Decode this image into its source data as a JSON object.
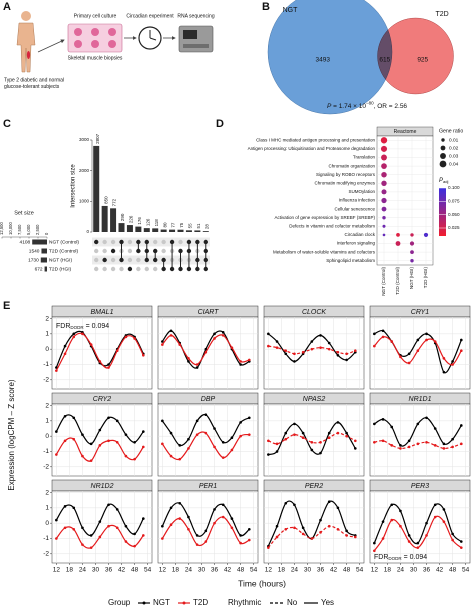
{
  "panel_a": {
    "label": "A",
    "steps": [
      "Primary cell culture",
      "Circadian experiment",
      "RNA sequencing"
    ],
    "biopsy": "Skeletal muscle biopsies",
    "caption": [
      "Type 2 diabetic and normal",
      "glucose-tolerant subjects"
    ]
  },
  "chart_data": [
    {
      "type": "venn",
      "panel": "B",
      "sets": [
        "NGT",
        "T2D"
      ],
      "colors": [
        "#6a9fd8",
        "#f07b7b"
      ],
      "values": [
        3493,
        615,
        925
      ],
      "annotation": [
        "P",
        " = 1.74 × 10",
        "−80",
        ", OR = 2.56"
      ]
    },
    {
      "type": "upset",
      "panel": "C",
      "ylabel": "Intersection size",
      "set_size_label": "Set size",
      "color": "#333333",
      "values": [
        2807,
        850,
        772,
        290,
        226,
        176,
        126,
        118,
        80,
        77,
        75,
        55,
        51,
        28
      ],
      "combinations": [
        [
          0
        ],
        [
          2
        ],
        [
          1
        ],
        [
          0,
          2
        ],
        [
          3
        ],
        [
          0,
          1
        ],
        [
          0,
          1,
          2
        ],
        [
          1,
          2
        ],
        [
          2,
          3
        ],
        [
          0,
          3
        ],
        [
          1,
          3
        ],
        [
          0,
          1,
          3
        ],
        [
          0,
          2,
          3
        ],
        [
          0,
          1,
          2,
          3
        ]
      ],
      "ylim": [
        0,
        3000
      ],
      "yticks": [
        0,
        1000,
        2000,
        3000
      ],
      "sets": [
        "NGT (Control)",
        "T2D (Control)",
        "NGT (HGI)",
        "T2D (HGI)"
      ],
      "set_sizes": [
        4108,
        1540,
        1730,
        672
      ],
      "set_size_xlim": [
        0,
        12500
      ],
      "set_size_xticks": [
        {
          "value": 12500,
          "label": "12,500"
        },
        {
          "value": 10000,
          "label": "10,000"
        },
        {
          "value": 7500,
          "label": "7,500"
        },
        {
          "value": 5000,
          "label": "5,000"
        },
        {
          "value": 2500,
          "label": "2,500"
        },
        0
      ]
    },
    {
      "type": "dotplot",
      "panel": "D",
      "header": "Reactome",
      "categories": [
        "Class I MHC mediated antigen processing and presentation",
        "Antigen processing: Ubiquitination and Proteasome degradation",
        "Translation",
        "Chromatin organization",
        "Signaling by ROBO receptors",
        "Chromatin modifying enzymes",
        "SUMOylation",
        "Influenza infection",
        "Cellular senescence",
        "Activation of gene expression by SREBF (SREBP)",
        "Defects in vitamin and cofactor metabolism",
        "Circadian clock",
        "Interferon signaling",
        "Metabolism of water-soluble vitamins and cofactors",
        "Sphingolipid metabolism"
      ],
      "x_categories": [
        "NGT (Control)",
        "T2D (Control)",
        "NGT (HGI)",
        "T2D (HGI)"
      ],
      "gene_ratio": [
        [
          0.035,
          null,
          null,
          null
        ],
        [
          0.032,
          null,
          null,
          null
        ],
        [
          0.03,
          null,
          null,
          null
        ],
        [
          0.028,
          null,
          null,
          null
        ],
        [
          0.026,
          null,
          null,
          null
        ],
        [
          0.025,
          null,
          null,
          null
        ],
        [
          0.022,
          null,
          null,
          null
        ],
        [
          0.024,
          null,
          null,
          null
        ],
        [
          0.02,
          null,
          null,
          null
        ],
        [
          0.01,
          null,
          null,
          null
        ],
        [
          0.008,
          null,
          null,
          null
        ],
        [
          0.006,
          0.012,
          0.01,
          0.015
        ],
        [
          null,
          0.02,
          0.015,
          null
        ],
        [
          null,
          null,
          0.012,
          null
        ],
        [
          null,
          null,
          0.01,
          null
        ]
      ],
      "p_adj": [
        [
          0.02,
          null,
          null,
          null
        ],
        [
          0.025,
          null,
          null,
          null
        ],
        [
          0.03,
          null,
          null,
          null
        ],
        [
          0.04,
          null,
          null,
          null
        ],
        [
          0.045,
          null,
          null,
          null
        ],
        [
          0.05,
          null,
          null,
          null
        ],
        [
          0.055,
          null,
          null,
          null
        ],
        [
          0.06,
          null,
          null,
          null
        ],
        [
          0.065,
          null,
          null,
          null
        ],
        [
          0.07,
          null,
          null,
          null
        ],
        [
          0.075,
          null,
          null,
          null
        ],
        [
          0.08,
          0.02,
          0.03,
          0.09
        ],
        [
          null,
          0.03,
          0.05,
          null
        ],
        [
          null,
          null,
          0.06,
          null
        ],
        [
          null,
          null,
          0.07,
          null
        ]
      ],
      "size_title": "Gene ratio",
      "size_ticks": [
        0.01,
        0.02,
        0.03,
        0.04
      ],
      "color_title": [
        "P",
        "adj"
      ],
      "color_lim": [
        0.01,
        0.1
      ],
      "colors": [
        "#f21d2f",
        "#3a2ee0"
      ],
      "color_ticks": [
        {
          "value": 0.1,
          "label": "0.100"
        },
        0.075,
        {
          "value": 0.05,
          "label": "0.050"
        },
        0.025
      ]
    },
    {
      "type": "facet-line",
      "panel": "E",
      "xlabel": "Time (hours)",
      "ylabel": "Expression (logCPM – Z score)",
      "x": [
        12,
        16,
        20,
        24,
        28,
        32,
        36,
        40,
        44,
        48,
        52
      ],
      "xlim": [
        10,
        56
      ],
      "xticks": [
        12,
        18,
        24,
        30,
        36,
        42,
        48,
        54
      ],
      "ylim": [
        -2.6,
        2.1
      ],
      "yticks": [
        -2,
        -1,
        0,
        1,
        2
      ],
      "grid": true,
      "series": [
        {
          "name": "NGT",
          "color": "#000000"
        },
        {
          "name": "T2D",
          "color": "#e41a1c"
        }
      ],
      "legend": {
        "group_title": "Group",
        "rhythmic_title": "Rhythmic",
        "rhythmic_labels": [
          "No",
          "Yes"
        ]
      },
      "facets": [
        {
          "title": "BMAL1",
          "values": [
            [
              -1.2,
              0.2,
              1.0,
              1.1,
              0.2,
              -0.9,
              -1.0,
              0.0,
              0.9,
              0.8,
              -0.3
            ],
            [
              -1.4,
              -0.3,
              0.8,
              1.0,
              0.3,
              -0.8,
              -1.2,
              -0.1,
              0.8,
              0.7,
              -0.4
            ]
          ],
          "rhythmic": [
            true,
            true
          ],
          "annotation": [
            "FDR",
            "DODR",
            " = 0.094"
          ],
          "annotation_corner": "top-left"
        },
        {
          "title": "CIART",
          "values": [
            [
              0.5,
              1.2,
              0.4,
              -0.8,
              -1.2,
              0.0,
              1.0,
              1.1,
              0.0,
              -1.0,
              -0.8
            ],
            [
              0.3,
              0.9,
              0.3,
              -0.6,
              -1.0,
              -0.2,
              0.7,
              0.9,
              0.1,
              -0.8,
              -0.7
            ]
          ],
          "rhythmic": [
            true,
            true
          ]
        },
        {
          "title": "CLOCK",
          "values": [
            [
              1.0,
              0.5,
              -0.3,
              -0.8,
              -0.3,
              0.5,
              0.9,
              0.4,
              -0.4,
              -0.7,
              -0.2
            ],
            [
              0.2,
              0.1,
              -0.1,
              -0.3,
              -0.2,
              0.0,
              0.1,
              0.0,
              -0.2,
              -0.3,
              -0.1
            ]
          ],
          "rhythmic": [
            true,
            false
          ]
        },
        {
          "title": "CRY1",
          "values": [
            [
              1.0,
              1.2,
              0.5,
              -0.4,
              -0.3,
              0.6,
              1.0,
              0.4,
              -1.5,
              -0.8,
              0.6
            ],
            [
              0.2,
              0.8,
              0.5,
              -0.5,
              -0.9,
              -0.1,
              0.6,
              0.5,
              -0.6,
              -1.0,
              -0.1
            ]
          ],
          "rhythmic": [
            true,
            true
          ]
        },
        {
          "title": "CRY2",
          "values": [
            [
              0.3,
              1.3,
              1.2,
              0.1,
              -0.5,
              0.4,
              1.2,
              1.0,
              0.1,
              -0.4,
              0.3
            ],
            [
              -1.2,
              -0.3,
              -0.2,
              -1.3,
              -1.6,
              -0.6,
              -0.3,
              -0.4,
              -1.3,
              -1.5,
              -0.7
            ]
          ],
          "rhythmic": [
            true,
            true
          ]
        },
        {
          "title": "DBP",
          "values": [
            [
              1.0,
              0.2,
              -0.6,
              -0.2,
              1.0,
              1.4,
              0.5,
              -0.4,
              -0.1,
              0.9,
              1.2
            ],
            [
              -0.5,
              -1.3,
              -1.5,
              -0.8,
              0.1,
              0.2,
              -0.7,
              -1.4,
              -0.9,
              0.0,
              0.1
            ]
          ],
          "rhythmic": [
            true,
            true
          ]
        },
        {
          "title": "NPAS2",
          "values": [
            [
              -1.2,
              -1.0,
              0.2,
              0.8,
              0.2,
              -0.9,
              -1.1,
              0.2,
              0.9,
              0.2,
              -0.8
            ],
            [
              -0.3,
              -0.5,
              -0.2,
              0.1,
              -0.1,
              -0.4,
              -0.4,
              -0.1,
              0.2,
              0.0,
              -0.3
            ]
          ],
          "rhythmic": [
            true,
            false
          ]
        },
        {
          "title": "NR1D1",
          "values": [
            [
              0.8,
              1.1,
              0.6,
              -0.6,
              -0.3,
              0.8,
              1.2,
              0.5,
              -0.5,
              -0.2,
              0.7
            ],
            [
              -0.4,
              -0.3,
              -0.6,
              -0.8,
              -0.7,
              -0.5,
              -0.4,
              -0.6,
              -0.8,
              -0.7,
              -0.5
            ]
          ],
          "rhythmic": [
            true,
            false
          ]
        },
        {
          "title": "NR1D2",
          "values": [
            [
              0.2,
              1.1,
              1.0,
              -0.3,
              -0.8,
              0.1,
              1.2,
              0.9,
              -0.2,
              -0.7,
              0.3
            ],
            [
              -1.0,
              -0.3,
              -0.4,
              -1.4,
              -1.6,
              -0.9,
              -0.2,
              -0.3,
              -1.2,
              -1.5,
              -0.8
            ]
          ],
          "rhythmic": [
            true,
            true
          ]
        },
        {
          "title": "PER1",
          "values": [
            [
              -0.2,
              1.0,
              1.3,
              0.4,
              -0.8,
              -0.5,
              0.9,
              1.2,
              0.3,
              -0.8,
              -0.4
            ],
            [
              -1.0,
              -0.1,
              0.3,
              -0.4,
              -1.4,
              -1.2,
              0.0,
              0.4,
              -0.3,
              -1.3,
              -1.1
            ]
          ],
          "rhythmic": [
            true,
            true
          ]
        },
        {
          "title": "PER2",
          "values": [
            [
              -1.5,
              -0.2,
              1.3,
              1.2,
              -0.3,
              -1.0,
              0.2,
              1.4,
              1.0,
              -0.5,
              -0.8
            ],
            [
              -1.6,
              -0.9,
              -0.4,
              -0.3,
              -0.7,
              -1.0,
              -0.6,
              -0.2,
              -0.4,
              -0.8,
              -0.9
            ]
          ],
          "rhythmic": [
            true,
            false
          ]
        },
        {
          "title": "PER3",
          "values": [
            [
              -1.3,
              0.1,
              1.2,
              0.8,
              -0.8,
              -1.3,
              0.0,
              1.2,
              0.9,
              -0.7,
              -1.2
            ],
            [
              -1.8,
              -1.0,
              0.2,
              -0.2,
              -1.2,
              -1.6,
              -0.8,
              0.4,
              0.1,
              -1.1,
              -1.6
            ]
          ],
          "rhythmic": [
            true,
            true
          ],
          "annotation": [
            "FDR",
            "DODR",
            " = 0.094"
          ],
          "annotation_corner": "bottom-left"
        }
      ]
    }
  ]
}
